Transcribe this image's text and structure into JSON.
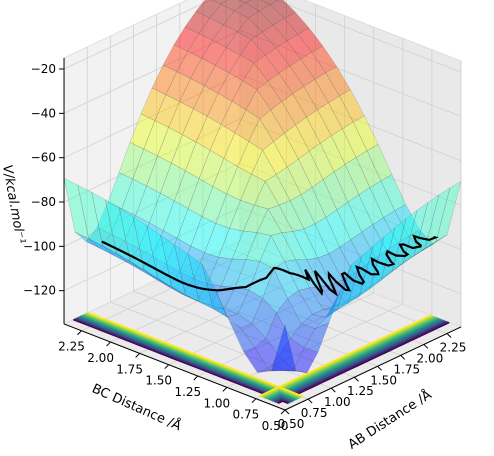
{
  "chart_data": {
    "type": "surface3d",
    "title": "",
    "xlabel": "AB Distance /Å",
    "ylabel": "BC Distance /Å",
    "zlabel": "V/kcal.mol⁻¹",
    "x_ticks": [
      "0.50",
      "0.75",
      "1.00",
      "1.25",
      "1.50",
      "1.75",
      "2.00",
      "2.25"
    ],
    "y_ticks": [
      "0.50",
      "0.75",
      "1.00",
      "1.25",
      "1.50",
      "1.75",
      "2.00",
      "2.25"
    ],
    "z_ticks": [
      "−20",
      "−40",
      "−60",
      "−80",
      "−100",
      "−120"
    ],
    "xlim": [
      0.5,
      2.4
    ],
    "ylim": [
      0.5,
      2.4
    ],
    "zlim": [
      -135,
      -15
    ],
    "colormap_surface": "jet",
    "colormap_contours": "viridis",
    "grid": true,
    "trajectory": {
      "color": "#000000",
      "points": [
        [
          0.72,
          2.25
        ],
        [
          0.74,
          1.95
        ],
        [
          0.76,
          1.6
        ],
        [
          0.79,
          1.3
        ],
        [
          0.83,
          1.1
        ],
        [
          0.9,
          0.98
        ],
        [
          1.05,
          0.9
        ],
        [
          1.25,
          0.84
        ],
        [
          1.5,
          0.8
        ],
        [
          1.8,
          0.77
        ],
        [
          2.1,
          0.75
        ],
        [
          2.4,
          0.74
        ]
      ]
    }
  }
}
